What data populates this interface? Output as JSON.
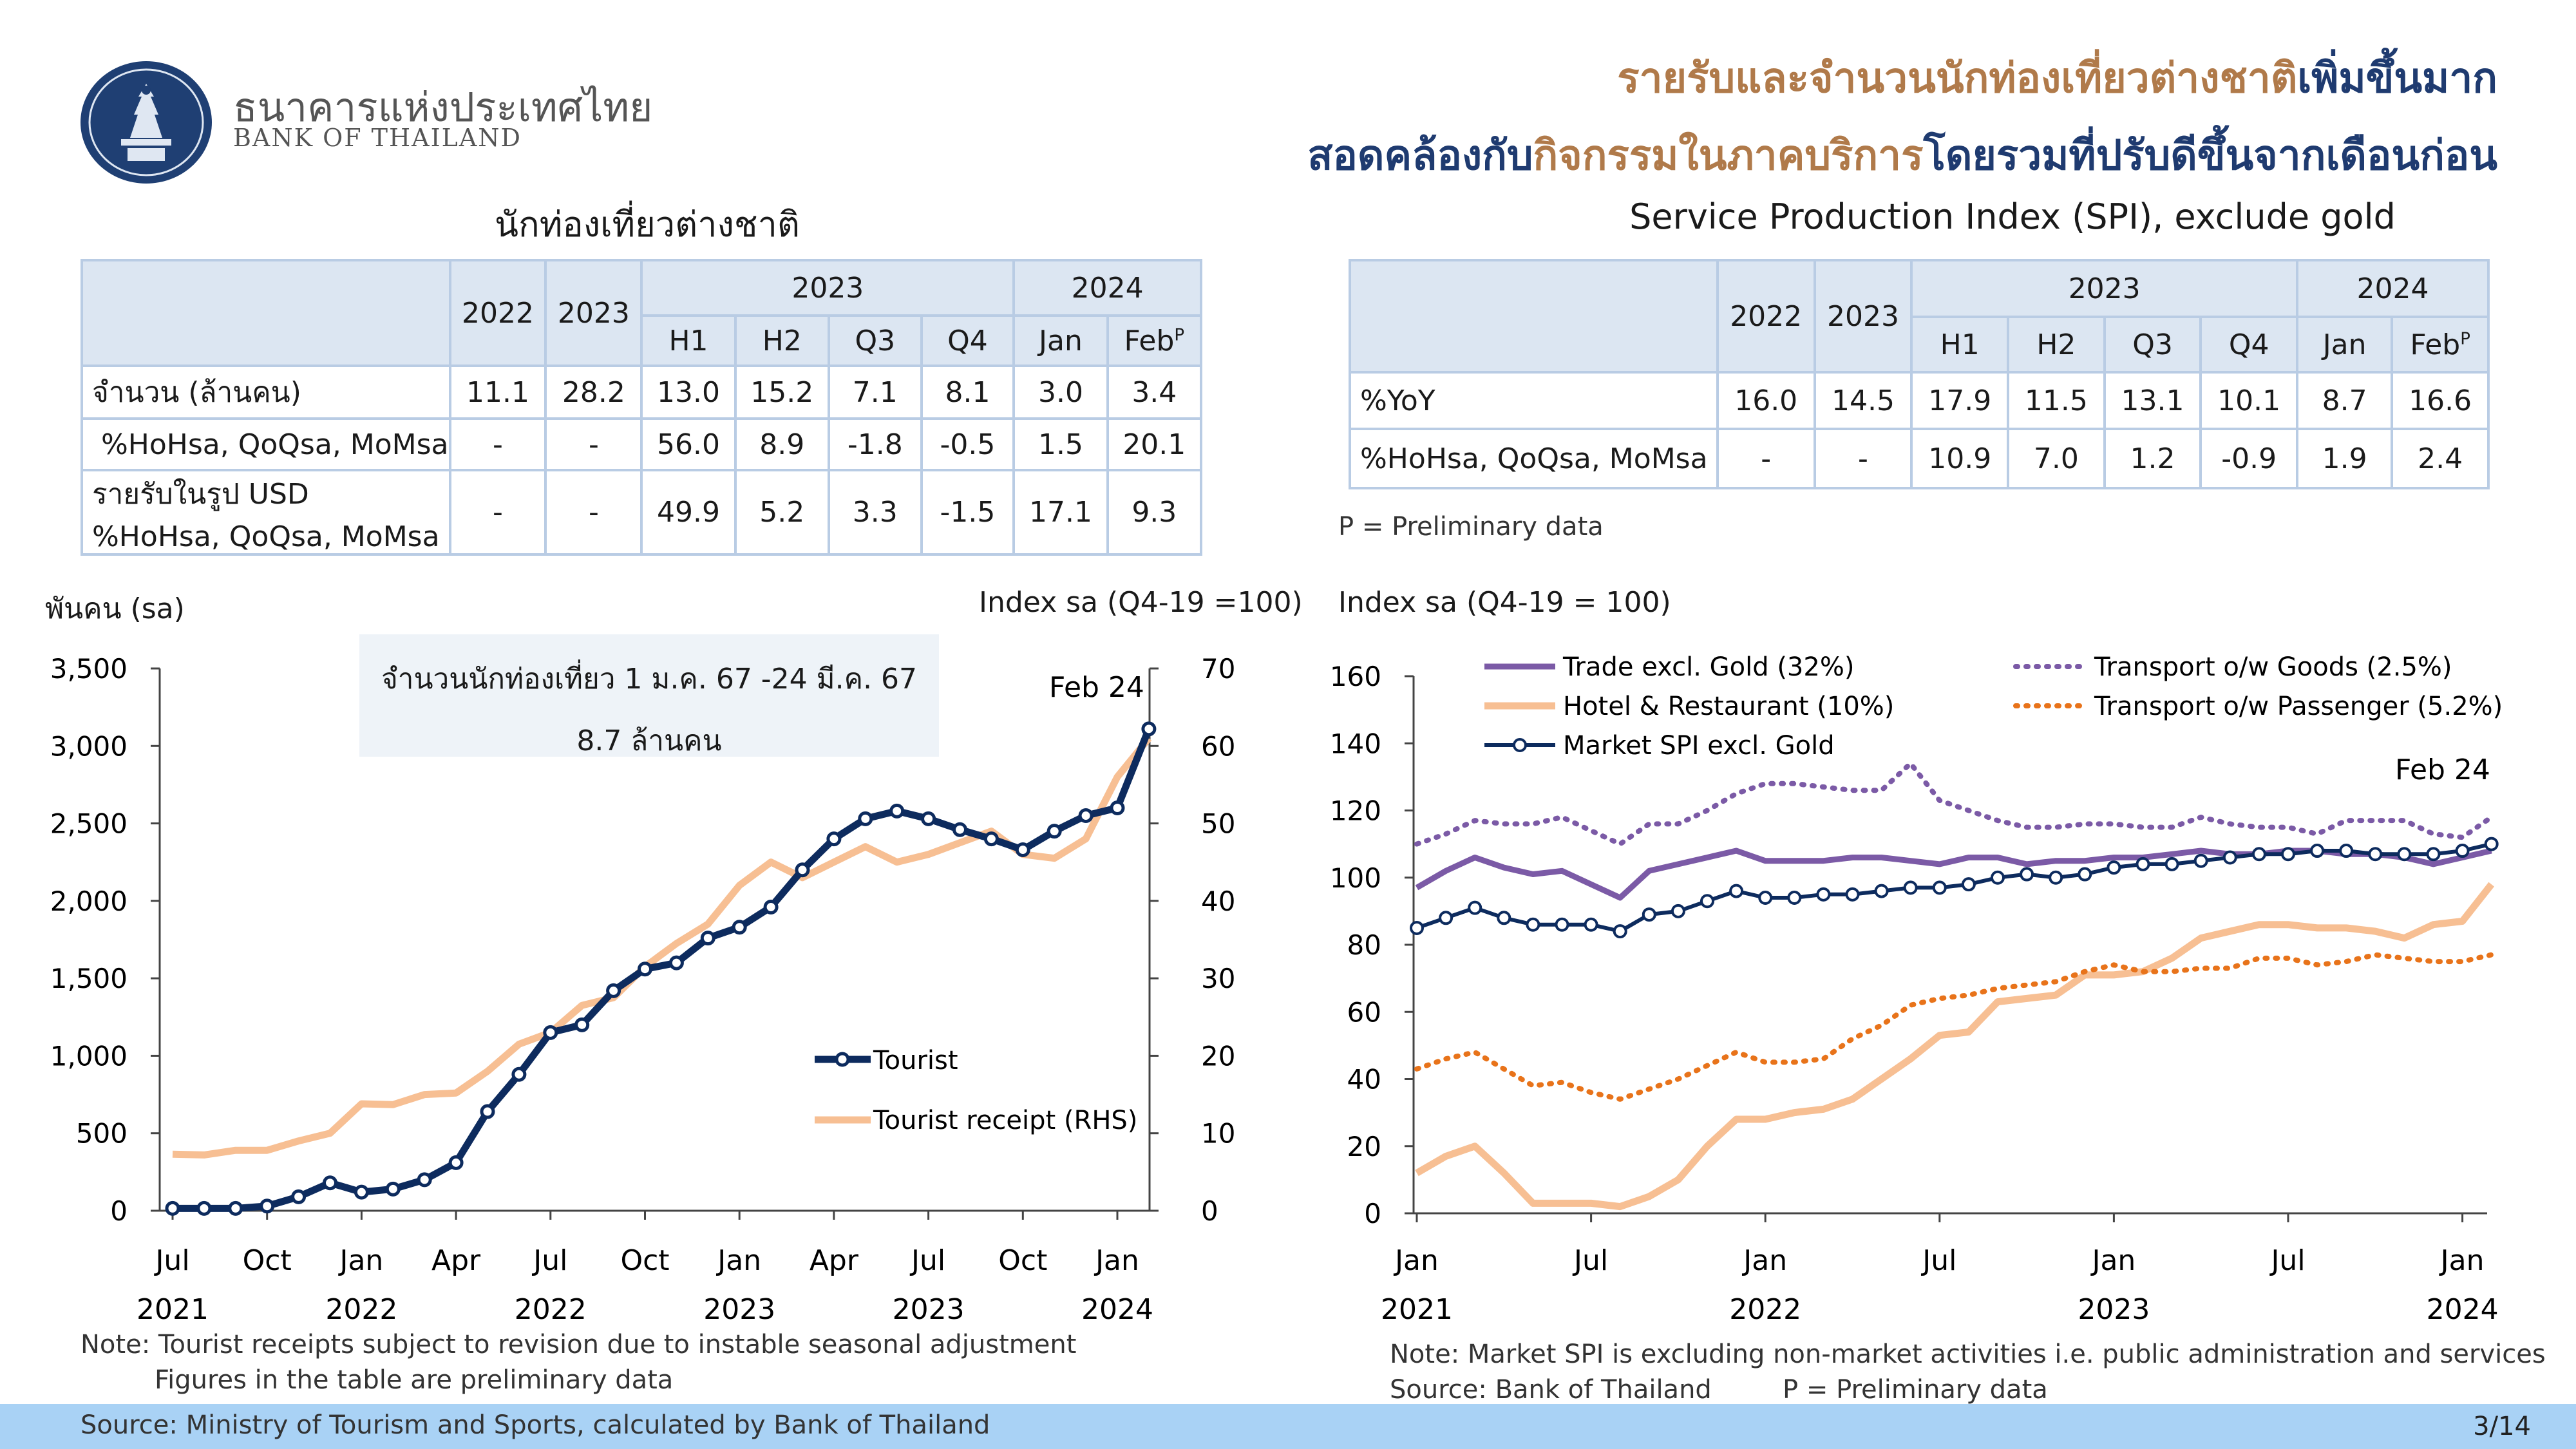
{
  "header": {
    "bank_name_th": "ธนาคารแห่งประเทศไทย",
    "bank_name_en": "BANK OF THAILAND",
    "headline_1a": "รายรับและจำนวนนักท่องเที่ยวต่างชาติ",
    "headline_1b": "เพิ่มขึ้นมาก",
    "headline_2a": "สอดคล้องกับ",
    "headline_2b": "กิจกรรมในภาคบริการ",
    "headline_2c": "โดยรวมที่ปรับดีขึ้นจากเดือนก่อน"
  },
  "tourist_table": {
    "title": "นักท่องเที่ยวต่างชาติ",
    "col_years": [
      "2022",
      "2023",
      "2023",
      "2024"
    ],
    "cols": [
      "H1",
      "H2",
      "Q3",
      "Q4",
      "Jan",
      "Feb"
    ],
    "prelim_mark": "P",
    "rows": [
      {
        "label": "จำนวน (ล้านคน)",
        "values": [
          "11.1",
          "28.2",
          "13.0",
          "15.2",
          "7.1",
          "8.1",
          "3.0",
          "3.4"
        ]
      },
      {
        "label": " %HoHsa, QoQsa, MoMsa",
        "values": [
          "-",
          "-",
          "56.0",
          "8.9",
          "-1.8",
          "-0.5",
          "1.5",
          "20.1"
        ]
      },
      {
        "label": "รายรับในรูป USD",
        "label2": "%HoHsa, QoQsa, MoMsa",
        "values": [
          "-",
          "-",
          "49.9",
          "5.2",
          "3.3",
          "-1.5",
          "17.1",
          "9.3"
        ]
      }
    ]
  },
  "spi_table": {
    "title": "Service Production Index (SPI), exclude gold",
    "rows": [
      {
        "label": "%YoY",
        "values": [
          "16.0",
          "14.5",
          "17.9",
          "11.5",
          "13.1",
          "10.1",
          "8.7",
          "16.6"
        ]
      },
      {
        "label": "%HoHsa, QoQsa, MoMsa",
        "values": [
          "-",
          "-",
          "10.9",
          "7.0",
          "1.2",
          "-0.9",
          "1.9",
          "2.4"
        ]
      }
    ],
    "note": "P = Preliminary data"
  },
  "callout": {
    "line1": "จำนวนนักท่องเที่ยว 1 ม.ค. 67 -24 มี.ค. 67",
    "line2": "8.7 ล้านคน"
  },
  "left_notes": {
    "note1": "Note: Tourist receipts subject to revision due to instable seasonal adjustment",
    "note2": "Figures in the table are preliminary data"
  },
  "right_notes": {
    "note1": "Note: Market SPI is excluding non-market activities i.e. public administration and services",
    "source": "Source: Bank of Thailand",
    "prelim": "P = Preliminary data"
  },
  "footer": {
    "source": "Source: Ministry of Tourism and Sports, calculated by Bank of Thailand",
    "page": "3/14"
  },
  "colors": {
    "navy": "#0d2b5e",
    "peach": "#f7bf93",
    "purple": "#7b5aa6",
    "orange": "#e8731a",
    "brown": "#b07a4a",
    "table_head": "#dce6f2"
  },
  "chart_data": [
    {
      "type": "line",
      "title": "",
      "ylabel": "พันคน (sa)",
      "ylabel_right": "Index sa (Q4-19 =100)",
      "annotation": "Feb 24",
      "x": [
        "Jul 2021",
        "Aug 2021",
        "Sep 2021",
        "Oct 2021",
        "Nov 2021",
        "Dec 2021",
        "Jan 2022",
        "Feb 2022",
        "Mar 2022",
        "Apr 2022",
        "May 2022",
        "Jun 2022",
        "Jul 2022",
        "Aug 2022",
        "Sep 2022",
        "Oct 2022",
        "Nov 2022",
        "Dec 2022",
        "Jan 2023",
        "Feb 2023",
        "Mar 2023",
        "Apr 2023",
        "May 2023",
        "Jun 2023",
        "Jul 2023",
        "Aug 2023",
        "Sep 2023",
        "Oct 2023",
        "Nov 2023",
        "Dec 2023",
        "Jan 2024",
        "Feb 2024"
      ],
      "x_ticks": [
        "Jul",
        "Oct",
        "Jan",
        "Apr",
        "Jul",
        "Oct",
        "Jan",
        "Apr",
        "Jul",
        "Oct",
        "Jan"
      ],
      "x_tick_years": [
        "2021",
        "2022",
        "2022",
        "2023",
        "2023",
        "2024"
      ],
      "ylim": [
        0,
        3500
      ],
      "y_ticks": [
        "0",
        "500",
        "1,000",
        "1,500",
        "2,000",
        "2,500",
        "3,000",
        "3,500"
      ],
      "ylim_right": [
        0,
        70
      ],
      "y_ticks_right": [
        "0",
        "10",
        "20",
        "30",
        "40",
        "50",
        "60",
        "70"
      ],
      "series": [
        {
          "name": "Tourist",
          "axis": "left",
          "values": [
            15,
            15,
            15,
            30,
            90,
            180,
            120,
            140,
            200,
            310,
            640,
            880,
            1150,
            1200,
            1420,
            1560,
            1600,
            1760,
            1830,
            1960,
            2200,
            2400,
            2530,
            2580,
            2530,
            2460,
            2400,
            2330,
            2450,
            2550,
            2600,
            3110
          ]
        },
        {
          "name": "Tourist receipt (RHS)",
          "axis": "right",
          "values": [
            7.3,
            7.2,
            7.8,
            7.8,
            9,
            10,
            13.8,
            13.7,
            15,
            15.2,
            18,
            21.5,
            23,
            26.5,
            27.5,
            31.5,
            34.5,
            37,
            42,
            45,
            43,
            45,
            47,
            45,
            46,
            47.5,
            49,
            46,
            45.5,
            48,
            56,
            61
          ]
        }
      ]
    },
    {
      "type": "line",
      "title": "",
      "ylabel": "Index sa (Q4-19 = 100)",
      "annotation": "Feb 24",
      "x": [
        "Jan 2021",
        "Feb 2021",
        "Mar 2021",
        "Apr 2021",
        "May 2021",
        "Jun 2021",
        "Jul 2021",
        "Aug 2021",
        "Sep 2021",
        "Oct 2021",
        "Nov 2021",
        "Dec 2021",
        "Jan 2022",
        "Feb 2022",
        "Mar 2022",
        "Apr 2022",
        "May 2022",
        "Jun 2022",
        "Jul 2022",
        "Aug 2022",
        "Sep 2022",
        "Oct 2022",
        "Nov 2022",
        "Dec 2022",
        "Jan 2023",
        "Feb 2023",
        "Mar 2023",
        "Apr 2023",
        "May 2023",
        "Jun 2023",
        "Jul 2023",
        "Aug 2023",
        "Sep 2023",
        "Oct 2023",
        "Nov 2023",
        "Dec 2023",
        "Jan 2024",
        "Feb 2024"
      ],
      "x_ticks": [
        "Jan",
        "Jul",
        "Jan",
        "Jul",
        "Jan",
        "Jul",
        "Jan"
      ],
      "x_tick_years": [
        "2021",
        "2022",
        "2023",
        "2024"
      ],
      "ylim": [
        0,
        160
      ],
      "y_ticks": [
        "0",
        "20",
        "40",
        "60",
        "80",
        "100",
        "120",
        "140",
        "160"
      ],
      "series": [
        {
          "name": "Trade excl. Gold (32%)",
          "style": "solid",
          "values": [
            97,
            102,
            106,
            103,
            101,
            102,
            98,
            94,
            102,
            104,
            106,
            108,
            105,
            105,
            105,
            106,
            106,
            105,
            104,
            106,
            106,
            104,
            105,
            105,
            106,
            106,
            107,
            108,
            107,
            107,
            108,
            108,
            107,
            107,
            106,
            104,
            106,
            108
          ]
        },
        {
          "name": "Hotel & Restaurant (10%)",
          "style": "solid",
          "values": [
            12,
            17,
            20,
            12,
            3,
            3,
            3,
            2,
            5,
            10,
            20,
            28,
            28,
            30,
            31,
            34,
            40,
            46,
            53,
            54,
            63,
            64,
            65,
            71,
            71,
            72,
            76,
            82,
            84,
            86,
            86,
            85,
            85,
            84,
            82,
            86,
            87,
            98
          ]
        },
        {
          "name": "Market SPI excl. Gold",
          "style": "solid-marker",
          "values": [
            85,
            88,
            91,
            88,
            86,
            86,
            86,
            84,
            89,
            90,
            93,
            96,
            94,
            94,
            95,
            95,
            96,
            97,
            97,
            98,
            100,
            101,
            100,
            101,
            103,
            104,
            104,
            105,
            106,
            107,
            107,
            108,
            108,
            107,
            107,
            107,
            108,
            110
          ]
        },
        {
          "name": "Transport o/w Goods (2.5%)",
          "style": "dotted",
          "values": [
            110,
            113,
            117,
            116,
            116,
            118,
            114,
            110,
            116,
            116,
            120,
            125,
            128,
            128,
            127,
            126,
            126,
            134,
            123,
            120,
            117,
            115,
            115,
            116,
            116,
            115,
            115,
            118,
            116,
            115,
            115,
            113,
            117,
            117,
            117,
            113,
            112,
            118
          ]
        },
        {
          "name": "Transport o/w Passenger (5.2%)",
          "style": "dotted",
          "values": [
            43,
            46,
            48,
            43,
            38,
            39,
            36,
            34,
            37,
            40,
            44,
            48,
            45,
            45,
            46,
            52,
            56,
            62,
            64,
            65,
            67,
            68,
            69,
            72,
            74,
            72,
            72,
            73,
            73,
            76,
            76,
            74,
            75,
            77,
            76,
            75,
            75,
            77
          ]
        }
      ]
    }
  ]
}
